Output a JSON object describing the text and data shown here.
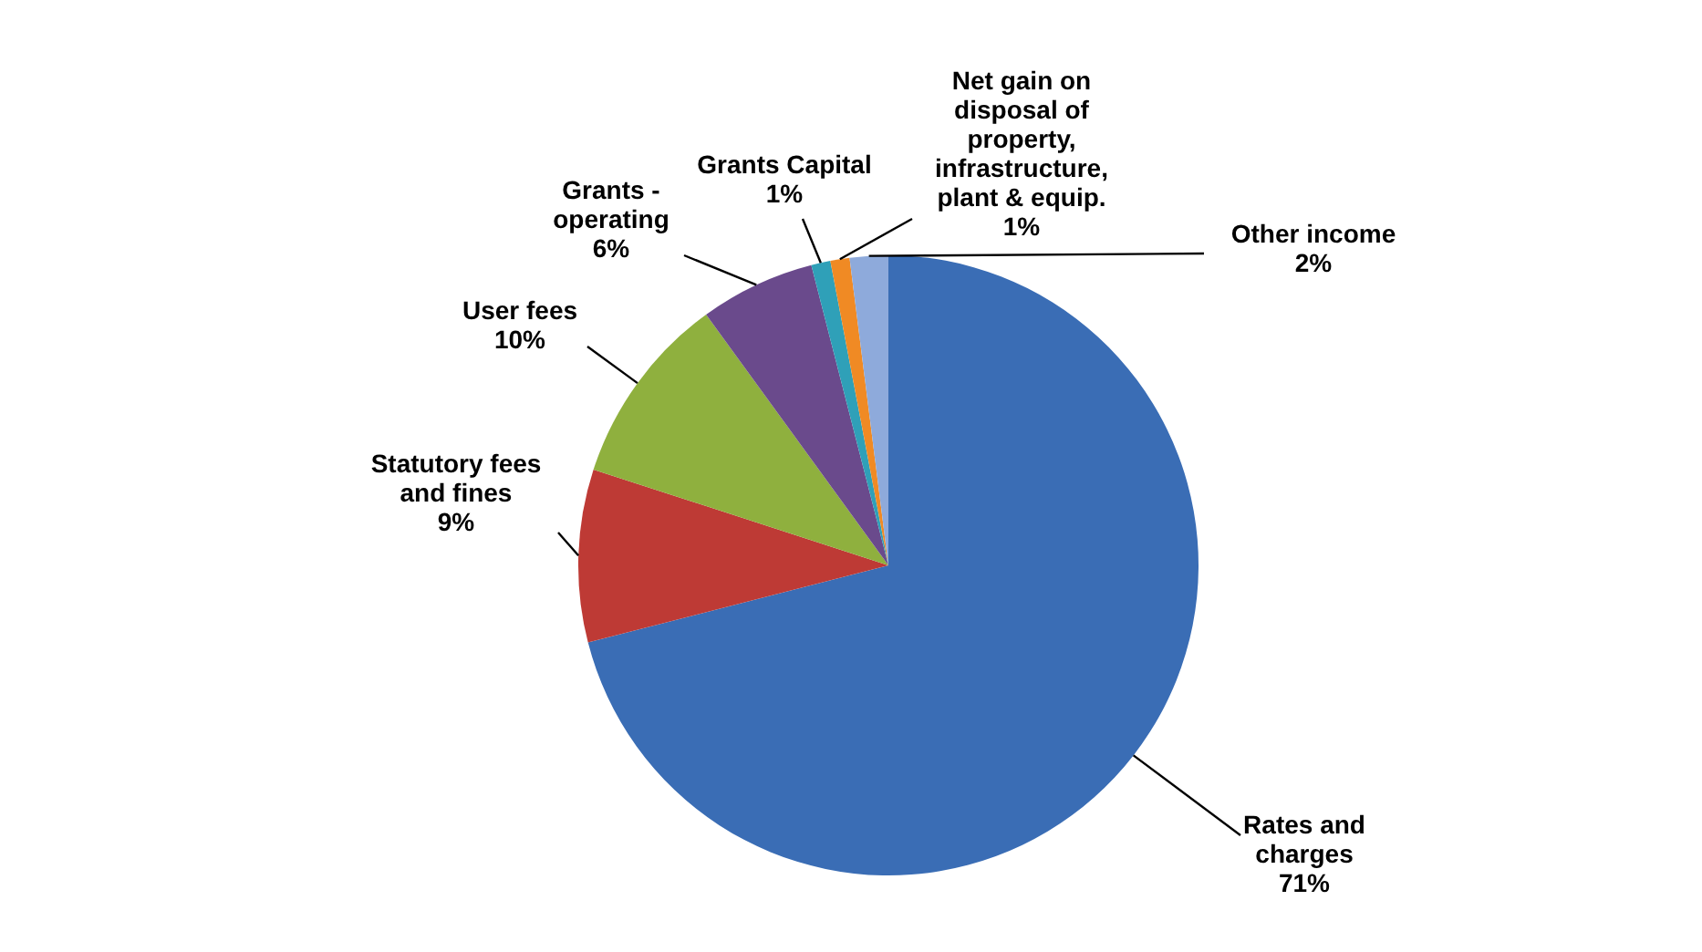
{
  "chart_data": {
    "type": "pie",
    "categories": [
      "Rates and charges",
      "Statutory fees and fines",
      "User fees",
      "Grants - operating",
      "Grants Capital",
      "Net gain on disposal of property, infrastructure, plant & equip.",
      "Other income"
    ],
    "values": [
      71,
      9,
      10,
      6,
      1,
      1,
      2
    ],
    "colors": [
      "#3a6db5",
      "#be3a35",
      "#8fb03e",
      "#6a4a8c",
      "#2fa0b8",
      "#f08a24",
      "#8eaadb"
    ],
    "value_labels": [
      "71%",
      "9%",
      "10%",
      "6%",
      "1%",
      "1%",
      "2%"
    ]
  }
}
